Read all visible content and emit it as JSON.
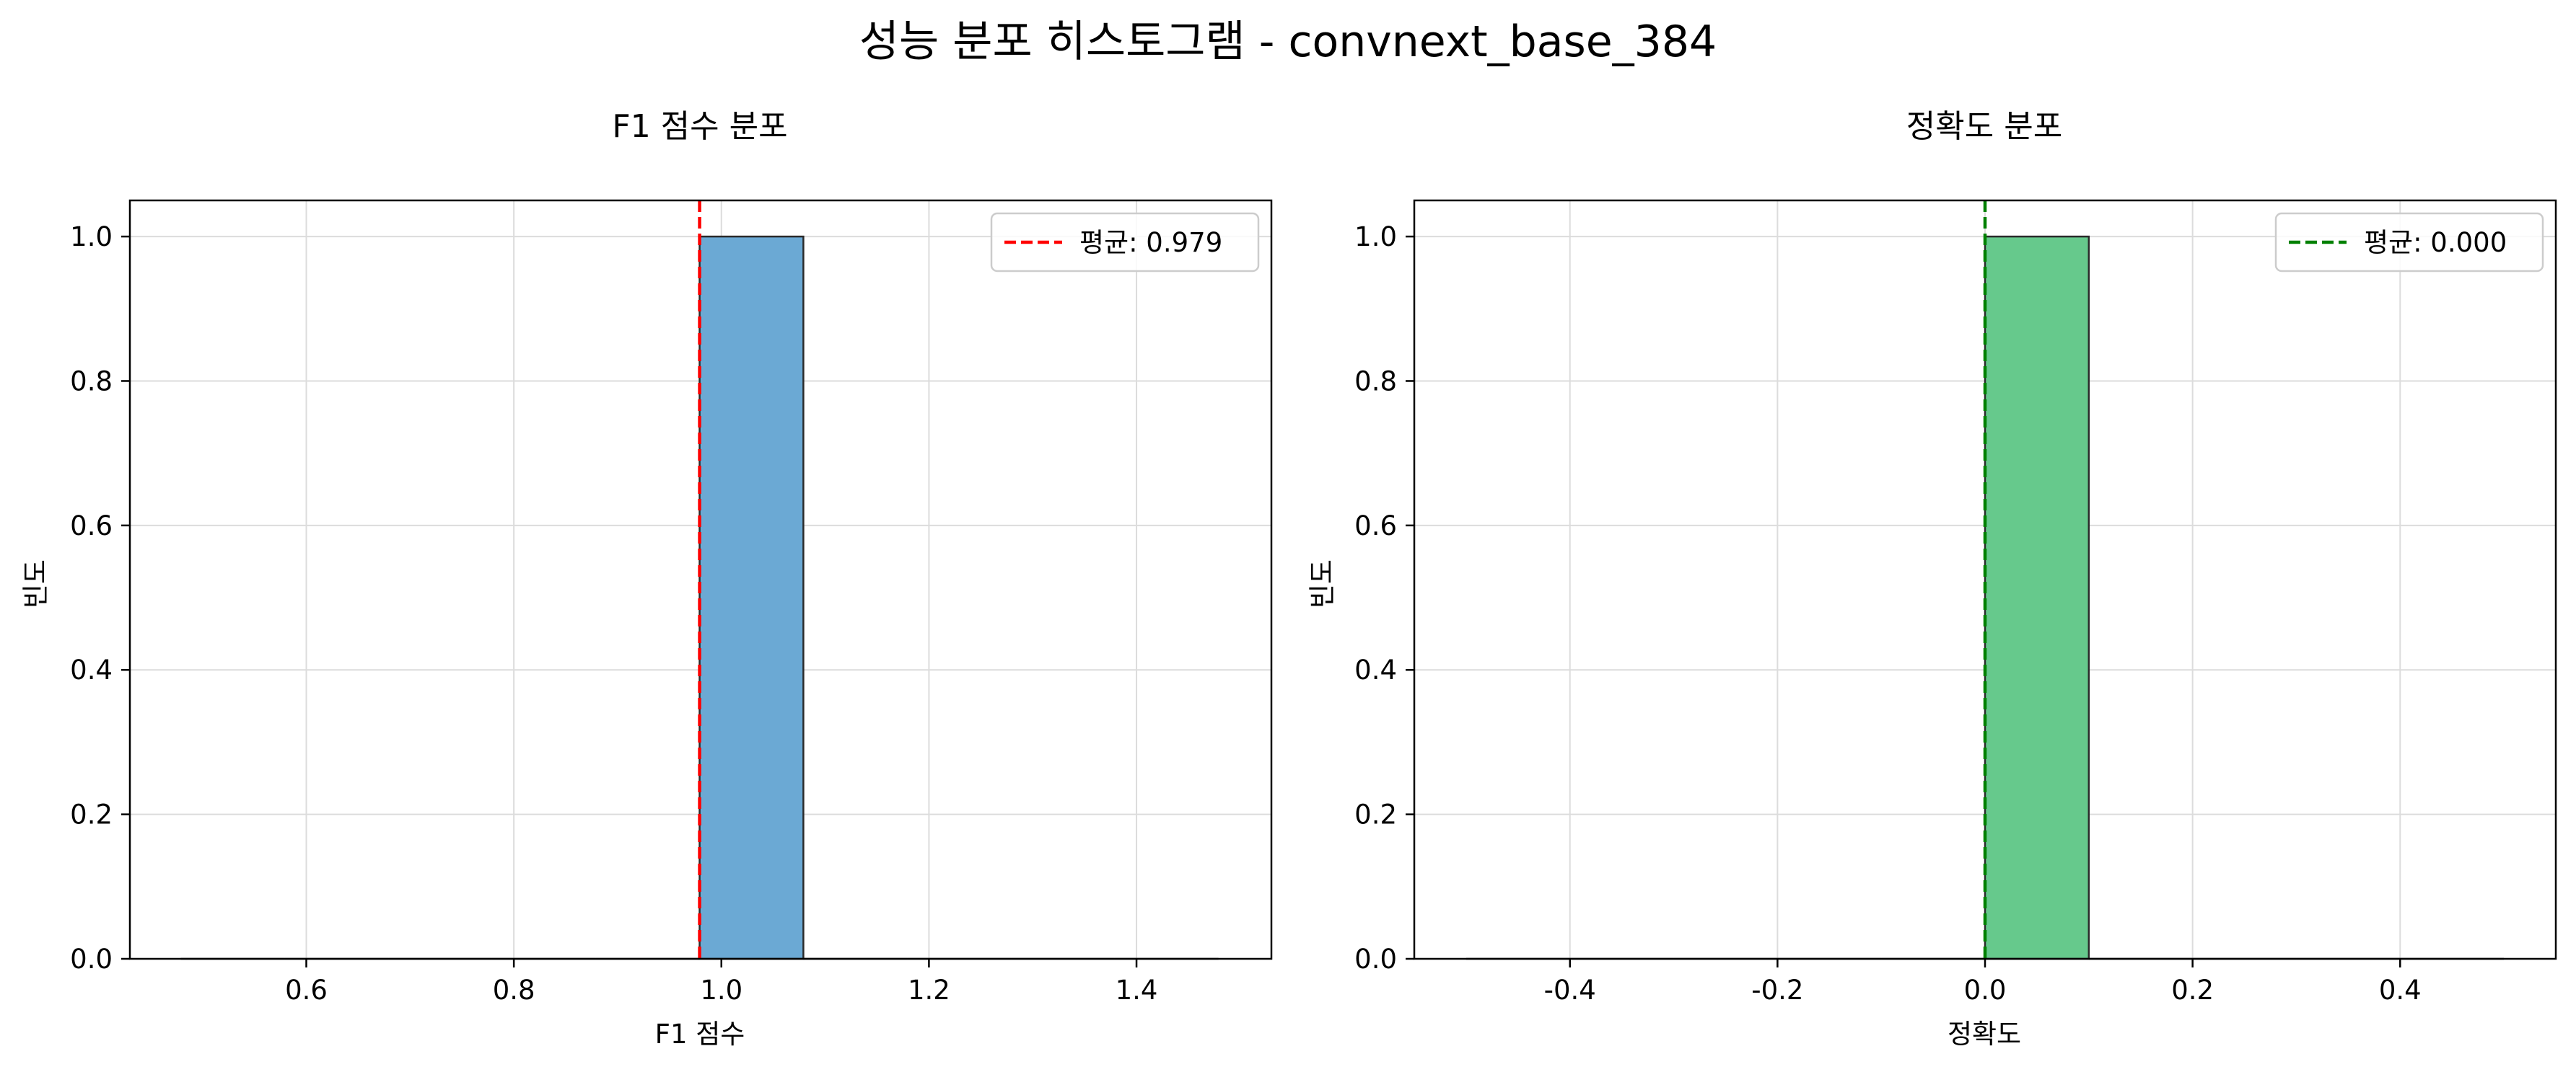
{
  "figure": {
    "title": "성능 분포 히스토그램 - convnext_base_384"
  },
  "chart_data": [
    {
      "type": "bar",
      "title": "F1 점수 분포",
      "xlabel": "F1 점수",
      "ylabel": "빈도",
      "xlim": [
        0.43,
        1.53
      ],
      "ylim": [
        0,
        1.05
      ],
      "xticks": [
        "0.6",
        "0.8",
        "1.0",
        "1.2",
        "1.4"
      ],
      "xtick_values": [
        0.6,
        0.8,
        1.0,
        1.2,
        1.4
      ],
      "yticks": [
        "0.0",
        "0.2",
        "0.4",
        "0.6",
        "0.8",
        "1.0"
      ],
      "ytick_values": [
        0,
        0.2,
        0.4,
        0.6,
        0.8,
        1.0
      ],
      "bins": [
        {
          "start": 0.479,
          "end": 0.579,
          "count": 0
        },
        {
          "start": 0.579,
          "end": 0.679,
          "count": 0
        },
        {
          "start": 0.679,
          "end": 0.779,
          "count": 0
        },
        {
          "start": 0.779,
          "end": 0.879,
          "count": 0
        },
        {
          "start": 0.879,
          "end": 0.979,
          "count": 0
        },
        {
          "start": 0.979,
          "end": 1.079,
          "count": 1
        },
        {
          "start": 1.079,
          "end": 1.179,
          "count": 0
        },
        {
          "start": 1.179,
          "end": 1.279,
          "count": 0
        },
        {
          "start": 1.279,
          "end": 1.379,
          "count": 0
        },
        {
          "start": 1.379,
          "end": 1.479,
          "count": 0
        }
      ],
      "bar_color": "#6ba9d4",
      "mean": 0.979,
      "mean_line_color": "#ff0000",
      "legend": {
        "label": "평균: 0.979",
        "position": "top-right"
      },
      "grid": true
    },
    {
      "type": "bar",
      "title": "정확도 분포",
      "xlabel": "정확도",
      "ylabel": "빈도",
      "xlim": [
        -0.55,
        0.55
      ],
      "ylim": [
        0,
        1.05
      ],
      "xticks": [
        "-0.4",
        "-0.2",
        "0.0",
        "0.2",
        "0.4"
      ],
      "xtick_values": [
        -0.4,
        -0.2,
        0.0,
        0.2,
        0.4
      ],
      "yticks": [
        "0.0",
        "0.2",
        "0.4",
        "0.6",
        "0.8",
        "1.0"
      ],
      "ytick_values": [
        0,
        0.2,
        0.4,
        0.6,
        0.8,
        1.0
      ],
      "bins": [
        {
          "start": -0.5,
          "end": -0.4,
          "count": 0
        },
        {
          "start": -0.4,
          "end": -0.3,
          "count": 0
        },
        {
          "start": -0.3,
          "end": -0.2,
          "count": 0
        },
        {
          "start": -0.2,
          "end": -0.1,
          "count": 0
        },
        {
          "start": -0.1,
          "end": 0.0,
          "count": 0
        },
        {
          "start": 0.0,
          "end": 0.1,
          "count": 1
        },
        {
          "start": 0.1,
          "end": 0.2,
          "count": 0
        },
        {
          "start": 0.2,
          "end": 0.3,
          "count": 0
        },
        {
          "start": 0.3,
          "end": 0.4,
          "count": 0
        },
        {
          "start": 0.4,
          "end": 0.5,
          "count": 0
        }
      ],
      "bar_color": "#66c98c",
      "mean": 0.0,
      "mean_line_color": "#008000",
      "legend": {
        "label": "평균: 0.000",
        "position": "top-right"
      },
      "grid": true
    }
  ]
}
